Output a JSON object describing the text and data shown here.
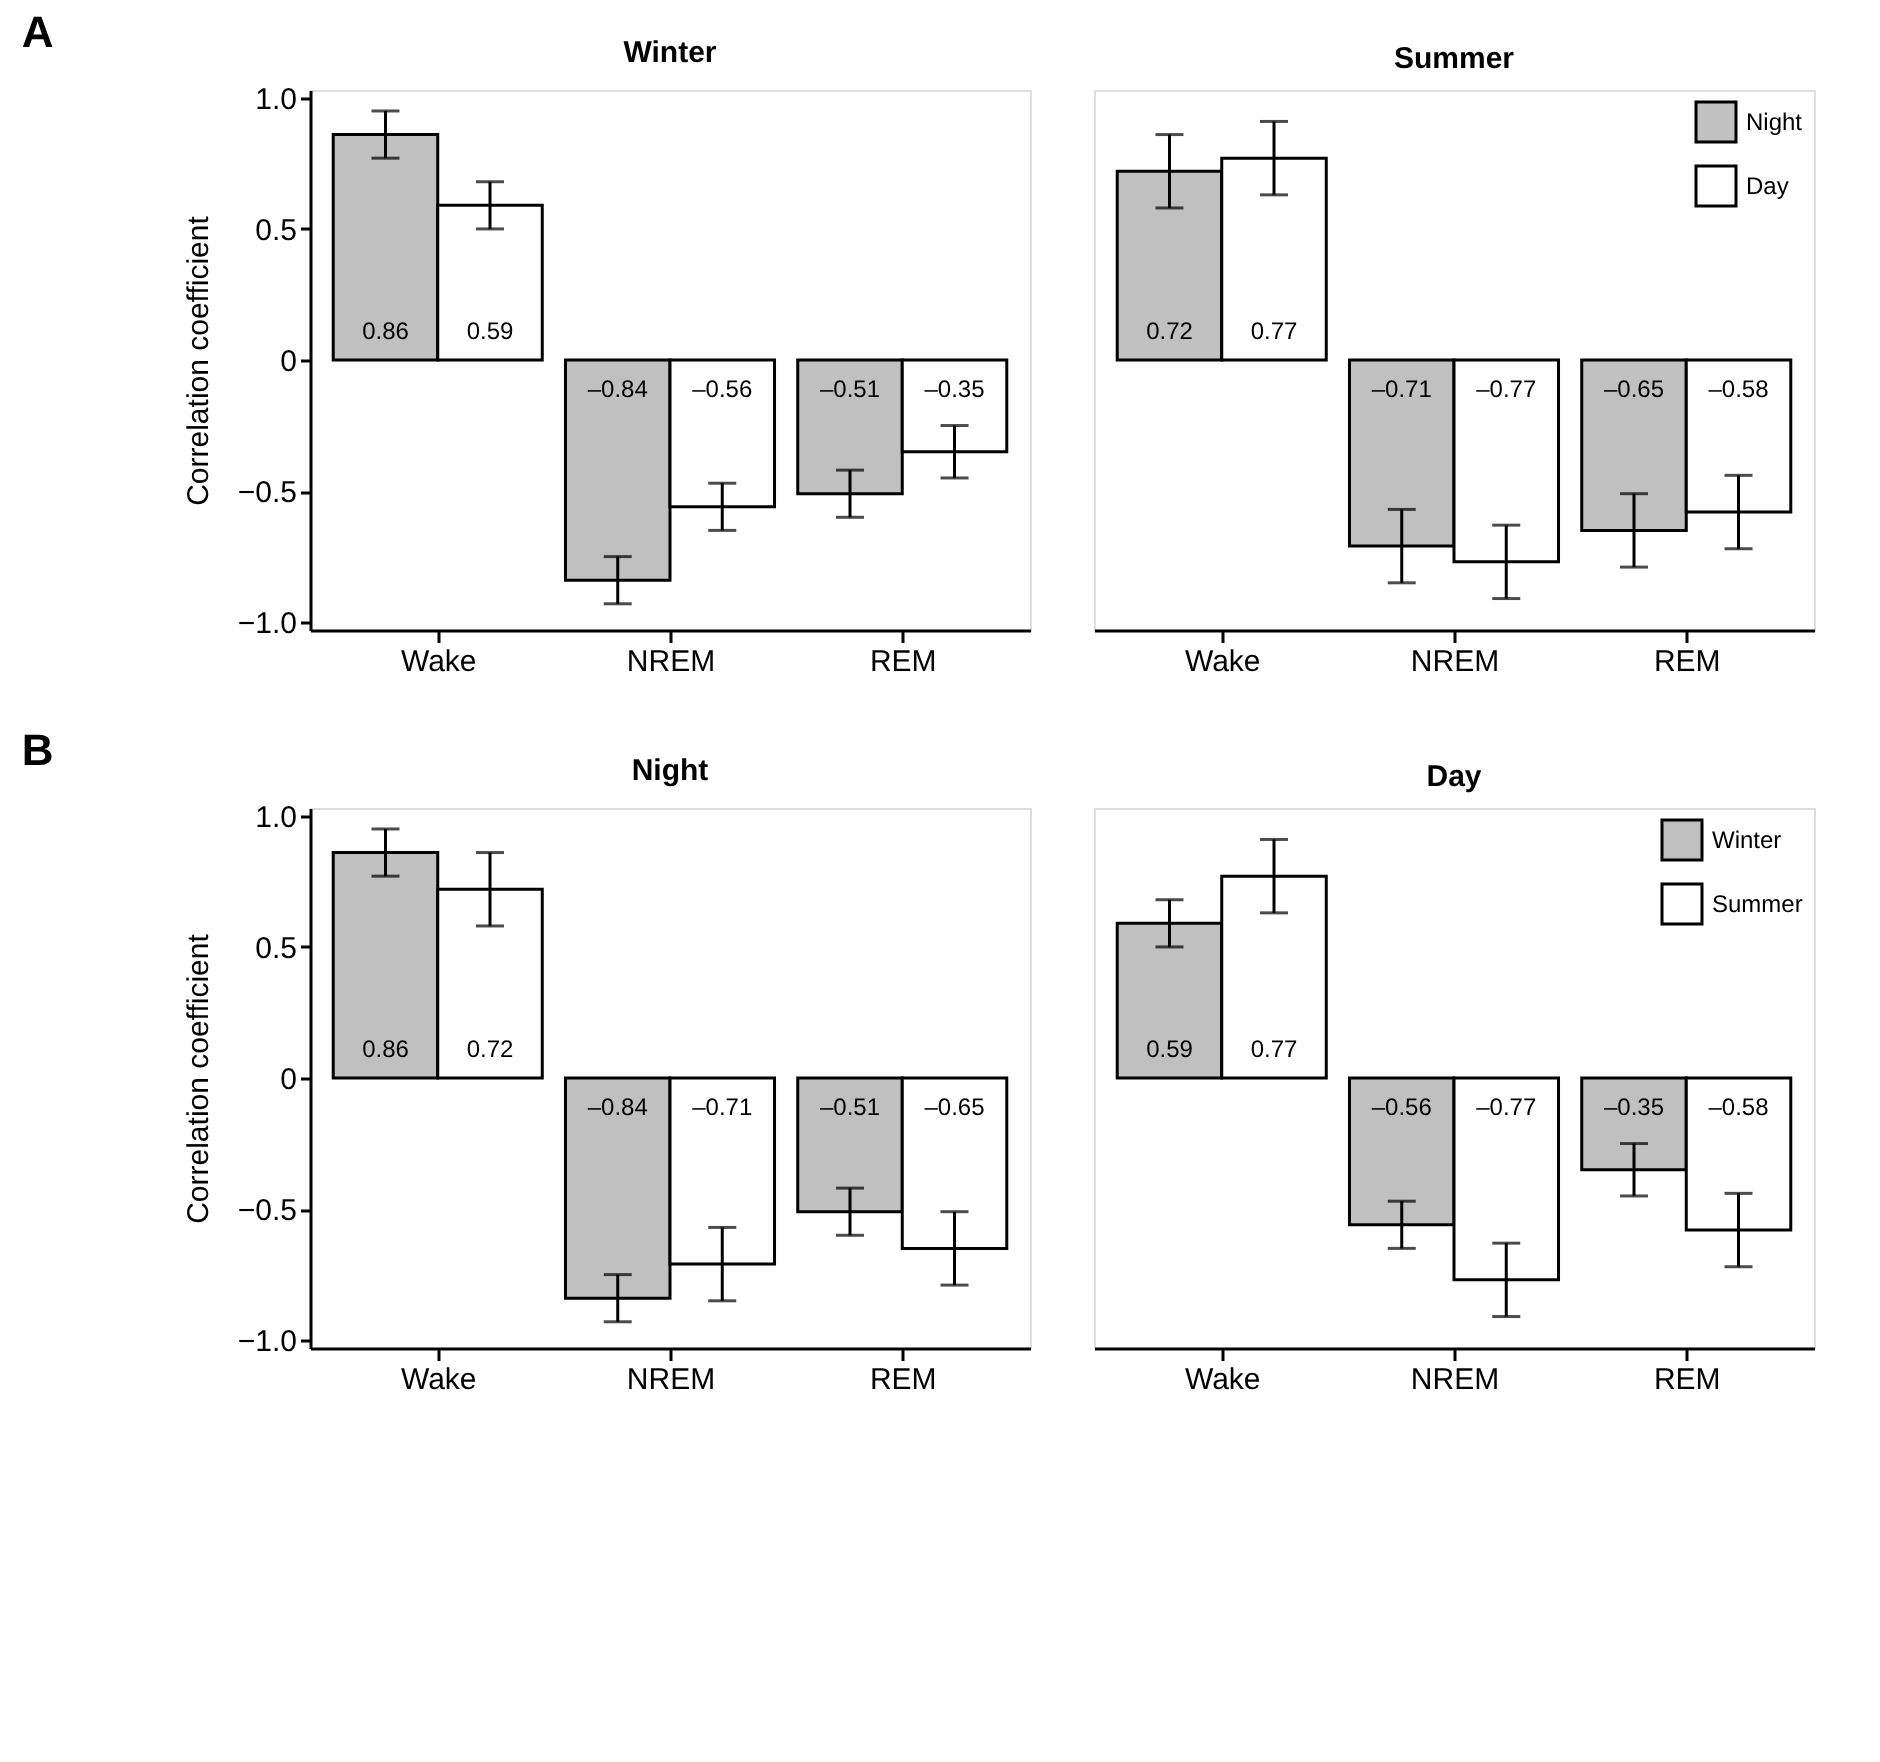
{
  "chart_data": [
    {
      "type": "bar",
      "title": "Winter",
      "ylabel": "Correlation coefficient",
      "annotations": [
        "A"
      ],
      "categories": [
        "Wake",
        "NREM",
        "REM"
      ],
      "ylim": [
        -1.03,
        1.03
      ],
      "yticks": [
        {
          "value": -1,
          "label": "−1.0"
        },
        {
          "value": -0.5,
          "label": "−0.5"
        },
        {
          "value": 0,
          "label": "0"
        },
        {
          "value": 0.5,
          "label": "0.5"
        },
        {
          "value": 1,
          "label": "1.0"
        }
      ],
      "legend": false,
      "series": [
        {
          "color": "#c0c0c0",
          "values": [
            0.86,
            -0.84,
            -0.51
          ],
          "value_labels": [
            "0.86",
            "–0.84",
            "–0.51"
          ],
          "errors": [
            0.09,
            0.09,
            0.09
          ]
        },
        {
          "color": "#ffffff",
          "values": [
            0.59,
            -0.56,
            -0.35
          ],
          "value_labels": [
            "0.59",
            "–0.56",
            "–0.35"
          ],
          "errors": [
            0.09,
            0.09,
            0.1
          ]
        }
      ]
    },
    {
      "type": "bar",
      "title": "Summer",
      "categories": [
        "Wake",
        "NREM",
        "REM"
      ],
      "ylim": [
        -1.03,
        1.03
      ],
      "tick_labels": "x",
      "legend": "top right",
      "series": [
        {
          "name": "Night",
          "color": "#c0c0c0",
          "values": [
            0.72,
            -0.71,
            -0.65
          ],
          "value_labels": [
            "0.72",
            "–0.71",
            "–0.65"
          ],
          "errors": [
            0.14,
            0.14,
            0.14
          ]
        },
        {
          "name": "Day",
          "color": "#ffffff",
          "values": [
            0.77,
            -0.77,
            -0.58
          ],
          "value_labels": [
            "0.77",
            "–0.77",
            "–0.58"
          ],
          "errors": [
            0.14,
            0.14,
            0.14
          ]
        }
      ]
    },
    {
      "type": "bar",
      "title": "Night",
      "ylabel": "Correlation coefficient",
      "annotations": [
        "B"
      ],
      "categories": [
        "Wake",
        "NREM",
        "REM"
      ],
      "ylim": [
        -1.03,
        1.03
      ],
      "yticks": [
        {
          "value": -1,
          "label": "−1.0"
        },
        {
          "value": -0.5,
          "label": "−0.5"
        },
        {
          "value": 0,
          "label": "0"
        },
        {
          "value": 0.5,
          "label": "0.5"
        },
        {
          "value": 1,
          "label": "1.0"
        }
      ],
      "legend": false,
      "series": [
        {
          "color": "#c0c0c0",
          "values": [
            0.86,
            -0.84,
            -0.51
          ],
          "value_labels": [
            "0.86",
            "–0.84",
            "–0.51"
          ],
          "errors": [
            0.09,
            0.09,
            0.09
          ]
        },
        {
          "color": "#ffffff",
          "values": [
            0.72,
            -0.71,
            -0.65
          ],
          "value_labels": [
            "0.72",
            "–0.71",
            "–0.65"
          ],
          "errors": [
            0.14,
            0.14,
            0.14
          ]
        }
      ]
    },
    {
      "type": "bar",
      "title": "Day",
      "categories": [
        "Wake",
        "NREM",
        "REM"
      ],
      "ylim": [
        -1.03,
        1.03
      ],
      "tick_labels": "x",
      "legend": "top right",
      "series": [
        {
          "name": "Winter",
          "color": "#c0c0c0",
          "values": [
            0.59,
            -0.56,
            -0.35
          ],
          "value_labels": [
            "0.59",
            "–0.56",
            "–0.35"
          ],
          "errors": [
            0.09,
            0.09,
            0.1
          ]
        },
        {
          "name": "Summer",
          "color": "#ffffff",
          "values": [
            0.77,
            -0.77,
            -0.58
          ],
          "value_labels": [
            "0.77",
            "–0.77",
            "–0.58"
          ],
          "errors": [
            0.14,
            0.14,
            0.14
          ]
        }
      ]
    }
  ]
}
